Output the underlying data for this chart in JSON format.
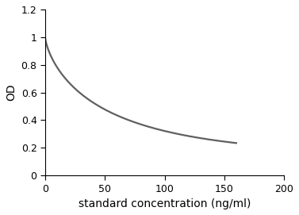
{
  "xlabel": "standard concentration (ng/ml)",
  "ylabel": "OD",
  "xlim": [
    0,
    200
  ],
  "ylim": [
    0,
    1.2
  ],
  "xticks": [
    0,
    50,
    100,
    150,
    200
  ],
  "yticks": [
    0,
    0.2,
    0.4,
    0.6,
    0.8,
    1.0,
    1.2
  ],
  "line_color": "#606060",
  "line_width": 1.6,
  "background_color": "#ffffff",
  "plot_bg_color": "#ffffff",
  "curve_x_end": 160,
  "curve_a": 0.87,
  "curve_b": 0.13,
  "curve_k": 0.055,
  "curve_n": 0.72,
  "xlabel_fontsize": 10,
  "ylabel_fontsize": 10,
  "tick_fontsize": 9
}
